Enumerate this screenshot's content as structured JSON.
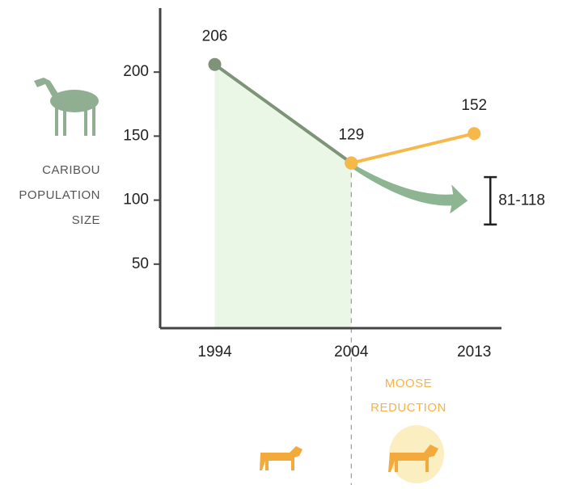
{
  "chart_data": {
    "type": "line",
    "y_label": [
      "CARIBOU",
      "POPULATION",
      "SIZE"
    ],
    "annotation": [
      "MOOSE",
      "REDUCTION"
    ],
    "xticks": [
      1994,
      2004,
      2013
    ],
    "xlim": [
      1990,
      2015
    ],
    "ylim": [
      0,
      250
    ],
    "yticks": [
      50,
      100,
      150,
      200
    ],
    "series": [
      {
        "color": "#7d9479",
        "x": [
          1994,
          2004
        ],
        "values": [
          206,
          129
        ]
      },
      {
        "color": "#f7b84a",
        "x": [
          2004,
          2013
        ],
        "values": [
          129,
          152
        ]
      }
    ],
    "projection": {
      "x": [
        2004,
        2013
      ],
      "range": [
        81,
        118
      ],
      "label": "81-118",
      "color": "#8db592"
    }
  }
}
